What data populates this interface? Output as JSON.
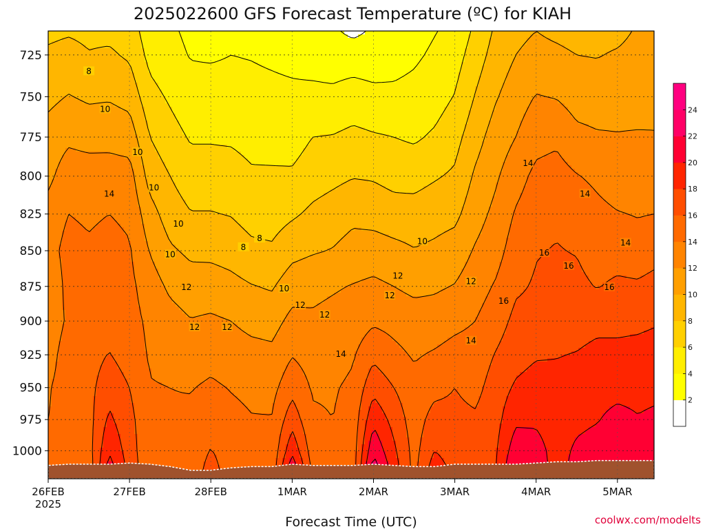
{
  "chart_data": {
    "type": "heatmap",
    "title": "2025022600 GFS Forecast Temperature (ºC) for KIAH",
    "xlabel": "Forecast Time (UTC)",
    "ylabel": "",
    "credit": "coolwx.com/modelts",
    "y_axis": {
      "scale": "log-pressure",
      "ticks": [
        "725",
        "750",
        "775",
        "800",
        "825",
        "850",
        "875",
        "900",
        "925",
        "950",
        "975",
        "1000"
      ],
      "tick_values": [
        725,
        750,
        775,
        800,
        825,
        850,
        875,
        900,
        925,
        950,
        975,
        1000
      ],
      "range": [
        1023,
        711
      ]
    },
    "x_axis": {
      "ticks": [
        "26FEB",
        "27FEB",
        "28FEB",
        "1MAR",
        "2MAR",
        "3MAR",
        "4MAR",
        "5MAR"
      ],
      "start_year": "2025",
      "tick_days": [
        0,
        1,
        2,
        3,
        4,
        5,
        6,
        7
      ],
      "range_days": [
        0,
        7.45
      ]
    },
    "grid": true,
    "colorbar": {
      "levels": [
        2,
        4,
        6,
        8,
        10,
        12,
        14,
        16,
        18,
        20,
        22,
        24
      ],
      "labels": [
        "2",
        "4",
        "6",
        "8",
        "10",
        "12",
        "14",
        "16",
        "18",
        "20",
        "22",
        "24"
      ],
      "colors": [
        "#ffffff",
        "#ffff00",
        "#ffee00",
        "#ffd000",
        "#ffb600",
        "#ff9f00",
        "#ff8400",
        "#ff6a00",
        "#ff4e00",
        "#ff2500",
        "#ff0033",
        "#ff0066",
        "#ff0080"
      ]
    },
    "surface_color": "#a0522d",
    "profile_days": [
      0,
      0.25,
      0.5,
      0.75,
      1,
      1.25,
      1.5,
      1.75,
      2,
      2.25,
      2.5,
      2.75,
      3,
      3.25,
      3.5,
      3.75,
      4,
      4.25,
      4.5,
      4.75,
      5,
      5.25,
      5.5,
      5.75,
      6,
      6.25,
      6.5,
      6.75,
      7,
      7.25,
      7.45
    ],
    "profile_levels": [
      1020,
      1000,
      975,
      950,
      925,
      900,
      875,
      850,
      825,
      800,
      775,
      750,
      725,
      711
    ],
    "temperatures": [
      [
        15,
        14.2,
        14,
        13.8,
        13,
        12.5,
        12.5,
        13.2,
        12.8,
        11.5,
        10.8,
        9.5,
        8.3,
        7.6
      ],
      [
        14.4,
        14.6,
        14.8,
        15.1,
        15.2,
        14.4,
        14.6,
        14.7,
        14,
        13.1,
        11.6,
        10.1,
        8.6,
        7.8
      ],
      [
        14.6,
        15.2,
        15.3,
        15.4,
        15.2,
        14.9,
        14.8,
        14.3,
        13.7,
        13,
        11.3,
        9.7,
        8.1,
        7.6
      ],
      [
        21.4,
        19.8,
        18.4,
        17.2,
        16.1,
        15.3,
        15.2,
        14.7,
        14,
        12.9,
        11.4,
        9.8,
        8.3,
        7.5
      ],
      [
        17.4,
        17,
        16.6,
        16,
        15.1,
        14.7,
        14.5,
        14.2,
        13.6,
        12.8,
        11.1,
        9.3,
        7.7,
        7.1
      ],
      [
        14.4,
        14.3,
        14.4,
        14.1,
        13.8,
        13.6,
        13,
        11.9,
        10.8,
        9.2,
        8,
        6.7,
        5.4,
        4.8
      ],
      [
        14.3,
        14.3,
        14.2,
        14,
        13.5,
        12.8,
        11.6,
        10.3,
        9,
        8,
        6.8,
        5.7,
        4.6,
        4.3
      ],
      [
        14.6,
        14.6,
        14.4,
        13.9,
        13.1,
        12.1,
        10.9,
        9.6,
        8.1,
        6.9,
        5.8,
        4.7,
        3.9,
        3.6
      ],
      [
        17.1,
        16.1,
        15.3,
        14.3,
        13.4,
        12.3,
        11,
        9.5,
        8.1,
        6.9,
        5.8,
        4.8,
        3.8,
        3.5
      ],
      [
        14.8,
        14.9,
        14.5,
        13.9,
        13,
        12,
        10.6,
        9.2,
        7.9,
        6.9,
        5.7,
        4.7,
        4,
        3.6
      ],
      [
        14.3,
        14.3,
        14.1,
        13.6,
        12.7,
        11.4,
        10.1,
        8.5,
        7.2,
        6.3,
        5.3,
        4.6,
        3.9,
        3.6
      ],
      [
        14.7,
        14.5,
        14.1,
        13.4,
        12.5,
        11.2,
        9.8,
        8.3,
        7.1,
        6.3,
        5.2,
        4.5,
        3.7,
        3.3
      ],
      [
        22.2,
        19.5,
        17.2,
        15.3,
        13.9,
        12.6,
        11.1,
        9.4,
        7.7,
        6.3,
        5.1,
        4.4,
        3.5,
        2.7
      ],
      [
        15.7,
        15,
        14.3,
        13.8,
        13.2,
        12.3,
        11.5,
        9.8,
        8.4,
        7.1,
        6,
        4.5,
        3.2,
        2.1
      ],
      [
        13.9,
        14.1,
        14,
        13.8,
        13.2,
        12.6,
        11.8,
        10.1,
        8.9,
        7.5,
        6.1,
        4.4,
        3.1,
        2.3
      ],
      [
        15,
        15,
        14.8,
        14.4,
        13.8,
        12.9,
        12.1,
        10.8,
        9.5,
        7.9,
        6.5,
        4.8,
        3.1,
        1.5
      ],
      [
        23.7,
        21.6,
        19.5,
        17.4,
        15.5,
        13.7,
        12.4,
        11,
        9.2,
        7.8,
        6.2,
        4.5,
        3,
        2.3
      ],
      [
        19.2,
        18.4,
        17.3,
        16,
        14.5,
        13.4,
        12,
        10.6,
        8.8,
        7.4,
        6,
        4.4,
        3.3,
        3
      ],
      [
        15.4,
        15.3,
        15,
        14.6,
        13.8,
        13,
        11.5,
        10.1,
        8.8,
        7.3,
        5.7,
        4.6,
        3.7,
        3.3
      ],
      [
        19.5,
        18,
        16.8,
        15.4,
        14.2,
        13,
        11.7,
        10.4,
        9.2,
        7.8,
        6.3,
        5.1,
        4.3,
        3.9
      ],
      [
        17.5,
        17,
        16.5,
        16,
        14.7,
        13.5,
        12.1,
        10.9,
        9.5,
        8.3,
        7.3,
        6.1,
        5.1,
        4.5
      ],
      [
        17.6,
        17.1,
        16.3,
        15.4,
        14.8,
        14,
        13.1,
        12.2,
        11.2,
        10.3,
        9.2,
        8.1,
        7,
        6.4
      ],
      [
        18,
        17.7,
        17.3,
        16.9,
        16.1,
        15.1,
        14.2,
        13.2,
        12.5,
        11.7,
        10.9,
        9.8,
        8.8,
        8.3
      ],
      [
        22.6,
        21.2,
        19.6,
        18.3,
        17.2,
        16.5,
        15.7,
        15,
        14.2,
        13.2,
        12,
        11.1,
        10,
        9.5
      ],
      [
        20.9,
        20.7,
        19.7,
        18.9,
        17.8,
        16.6,
        16.2,
        15.9,
        15.2,
        14.5,
        13.3,
        12.1,
        10.6,
        10
      ],
      [
        19.5,
        19.3,
        19.1,
        18.7,
        17.9,
        17.1,
        16.4,
        16.1,
        15.7,
        14.8,
        13.6,
        11.9,
        10.4,
        9.6
      ],
      [
        20.6,
        20.3,
        19.6,
        18.9,
        18.1,
        17.1,
        16.5,
        15.9,
        15.2,
        14.1,
        12.5,
        11.2,
        10,
        9.3
      ],
      [
        21.8,
        20.7,
        19.9,
        19.4,
        18.6,
        17.4,
        15.9,
        15,
        14.5,
        13.6,
        12.2,
        11.1,
        9.9,
        9.4
      ],
      [
        22.9,
        21.5,
        20.5,
        19.5,
        18.5,
        17.5,
        16.4,
        15.1,
        14.1,
        13,
        12.1,
        11.3,
        10.2,
        9.5
      ],
      [
        21.8,
        20.8,
        20.1,
        19.5,
        18.6,
        17.6,
        16.3,
        14.8,
        13.9,
        12.9,
        12.2,
        11.1,
        10.6,
        10.2
      ],
      [
        21.5,
        20.9,
        20.3,
        19.6,
        18.8,
        17.8,
        16.7,
        15.2,
        14,
        12.8,
        12.1,
        11.5,
        11,
        10.6
      ]
    ],
    "surface_pressure": [
      1012,
      1011,
      1011,
      1011,
      1010,
      1011,
      1013,
      1016,
      1016,
      1014,
      1013,
      1013,
      1011,
      1012,
      1012,
      1012,
      1011,
      1012,
      1013,
      1013,
      1011,
      1011,
      1011,
      1011,
      1010,
      1009,
      1009,
      1008,
      1008,
      1008,
      1008
    ],
    "contour_levels": [
      2,
      4,
      6,
      8,
      10,
      12,
      14,
      16,
      18,
      20,
      22,
      24
    ]
  }
}
